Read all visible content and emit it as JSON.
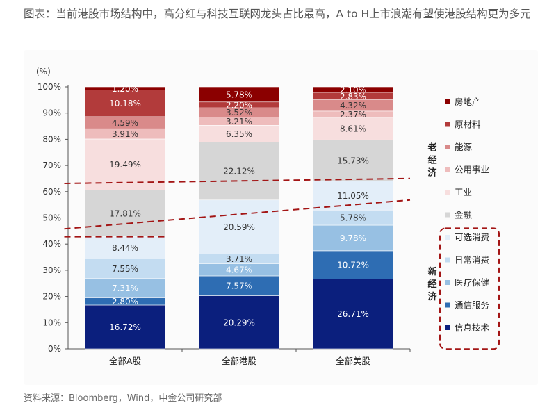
{
  "caption": "图表：当前港股市场结构中，高分红与科技互联网龙头占比最高，A to H上市浪潮有望使港股结构更为多元",
  "source": "资料来源：Bloomberg，Wind，中金公司研究部",
  "chart_data": {
    "type": "bar",
    "stacked": true,
    "ylabel": "(%)",
    "ylim": [
      0,
      100
    ],
    "ytick_step": 10,
    "ytick_suffix": "%",
    "categories": [
      "全部A股",
      "全部港股",
      "全部美股"
    ],
    "series": [
      {
        "name": "信息技术",
        "color": "#0b1f7d",
        "label_color": "#ffffff",
        "values": [
          16.72,
          20.29,
          26.71
        ],
        "labels": [
          "16.72%",
          "20.29%",
          "26.71%"
        ]
      },
      {
        "name": "通信服务",
        "color": "#2e6db3",
        "label_color": "#ffffff",
        "values": [
          2.8,
          7.57,
          10.72
        ],
        "labels": [
          "2.80%",
          "7.57%",
          "10.72%"
        ]
      },
      {
        "name": "医疗保健",
        "color": "#97c0e3",
        "label_color": "#ffffff",
        "values": [
          7.31,
          4.67,
          9.78
        ],
        "labels": [
          "7.31%",
          "4.67%",
          "9.78%"
        ]
      },
      {
        "name": "日常消费",
        "color": "#c3dcf1",
        "label_color": "#333333",
        "values": [
          7.55,
          3.71,
          5.78
        ],
        "labels": [
          "7.55%",
          "3.71%",
          "5.78%"
        ]
      },
      {
        "name": "可选消费",
        "color": "#e3eef9",
        "label_color": "#333333",
        "values": [
          8.44,
          20.59,
          11.05
        ],
        "labels": [
          "8.44%",
          "20.59%",
          "11.05%"
        ]
      },
      {
        "name": "金融",
        "color": "#d6d6d6",
        "label_color": "#333333",
        "values": [
          17.81,
          22.12,
          15.73
        ],
        "labels": [
          "17.81%",
          "22.12%",
          "15.73%"
        ]
      },
      {
        "name": "工业",
        "color": "#f7dede",
        "label_color": "#333333",
        "values": [
          19.49,
          6.35,
          8.61
        ],
        "labels": [
          "19.49%",
          "6.35%",
          "8.61%"
        ]
      },
      {
        "name": "公用事业",
        "color": "#eebcbc",
        "label_color": "#333333",
        "values": [
          3.91,
          3.21,
          2.37
        ],
        "labels": [
          "3.91%",
          "3.21%",
          "2.37%"
        ]
      },
      {
        "name": "能源",
        "color": "#d98a8a",
        "label_color": "#333333",
        "values": [
          4.59,
          3.52,
          4.32
        ],
        "labels": [
          "4.59%",
          "3.52%",
          "4.32%"
        ]
      },
      {
        "name": "原材料",
        "color": "#b23b3b",
        "label_color": "#ffffff",
        "values": [
          10.18,
          2.2,
          2.83
        ],
        "labels": [
          "10.18%",
          "2.20%",
          "2.83%"
        ]
      },
      {
        "name": "房地产",
        "color": "#8b0000",
        "label_color": "#ffffff",
        "values": [
          1.2,
          5.78,
          2.1
        ],
        "labels": [
          "1.20%",
          "5.78%",
          "2.10%"
        ]
      }
    ],
    "legend_placement": "right",
    "legend_order": [
      "房地产",
      "原材料",
      "能源",
      "公用事业",
      "工业",
      "金融",
      "可选消费",
      "日常消费",
      "医疗保健",
      "通信服务",
      "信息技术"
    ],
    "groups": [
      {
        "label": "老经济",
        "members": [
          "房地产",
          "原材料",
          "能源",
          "公用事业",
          "工业",
          "金融"
        ]
      },
      {
        "label": "新经济",
        "members": [
          "可选消费",
          "日常消费",
          "医疗保健",
          "通信服务",
          "信息技术"
        ],
        "boxed": true
      }
    ],
    "annotation_style": {
      "dash_color": "#a31515"
    }
  }
}
